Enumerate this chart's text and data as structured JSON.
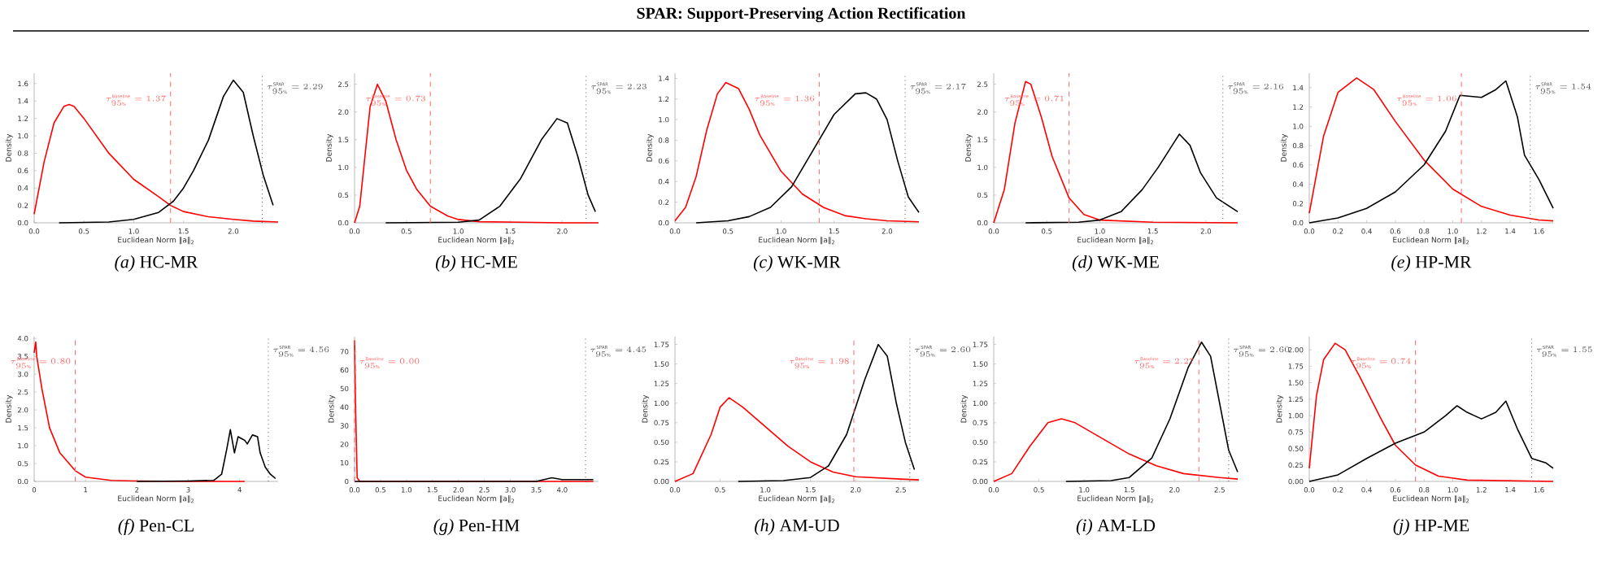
{
  "chart_data": [
    {
      "type": "other",
      "title": "SPAR: Support-Preserving Action Rectification"
    },
    {
      "type": "line",
      "title": "*(a)* HC-MR",
      "xlabel": "Euclidean Norm ‖a‖$_{2}$",
      "ylabel": "Density",
      "xlim": [
        0,
        2.45
      ],
      "ylim": [
        0,
        1.72
      ],
      "xticks": [
        {
          "value": 0,
          "label": "0.0"
        },
        0.5,
        {
          "value": 1,
          "label": "1.0"
        },
        1.5,
        {
          "value": 2,
          "label": "2.0"
        }
      ],
      "yticks": [
        {
          "value": 0,
          "label": "0.0"
        },
        0.2,
        0.4,
        0.6,
        0.8,
        {
          "value": 1,
          "label": "1.0"
        },
        1.2,
        1.4,
        1.6
      ],
      "series": [
        {
          "color": "#ff0000",
          "x": [
            0,
            0.1,
            0.2,
            0.3,
            0.35,
            0.4,
            0.5,
            0.75,
            1.0,
            1.25,
            1.37,
            1.5,
            1.75,
            2.0,
            2.2,
            2.45
          ],
          "values": [
            0.1,
            0.7,
            1.15,
            1.34,
            1.36,
            1.34,
            1.2,
            0.8,
            0.5,
            0.3,
            0.2,
            0.13,
            0.07,
            0.04,
            0.02,
            0.01
          ]
        },
        {
          "color": "#000000",
          "x": [
            0.25,
            0.75,
            1.0,
            1.25,
            1.4,
            1.5,
            1.6,
            1.75,
            1.9,
            2.0,
            2.1,
            2.2,
            2.3,
            2.4
          ],
          "values": [
            0,
            0.01,
            0.04,
            0.12,
            0.25,
            0.4,
            0.6,
            0.95,
            1.45,
            1.64,
            1.5,
            1.0,
            0.55,
            0.2
          ]
        }
      ],
      "ref_lines": [
        {
          "axis": "x",
          "value": 1.37,
          "label": "\\tau^{\\mathrm{Baseline}}_{95\\%} = 1.37",
          "color": "#ff6666",
          "line_style": "dashed"
        },
        {
          "axis": "x",
          "value": 2.29,
          "label": "\\tau^{\\mathrm{SPAR}}_{95\\%} = 2.29",
          "color": "#555555",
          "line_style": "dotted"
        }
      ]
    },
    {
      "type": "line",
      "title": "*(b)* HC-ME",
      "xlabel": "Euclidean Norm ‖a‖$_{2}$",
      "ylabel": "Density",
      "xlim": [
        0,
        2.35
      ],
      "ylim": [
        0,
        2.7
      ],
      "xticks": [
        {
          "value": 0,
          "label": "0.0"
        },
        0.5,
        {
          "value": 1,
          "label": "1.0"
        },
        1.5,
        {
          "value": 2,
          "label": "2.0"
        }
      ],
      "yticks": [
        {
          "value": 0,
          "label": "0.0"
        },
        0.5,
        {
          "value": 1,
          "label": "1.0"
        },
        1.5,
        {
          "value": 2,
          "label": "2.0"
        },
        2.5
      ],
      "series": [
        {
          "color": "#ff0000",
          "x": [
            0,
            0.05,
            0.1,
            0.15,
            0.22,
            0.3,
            0.4,
            0.5,
            0.6,
            0.73,
            0.9,
            1.0,
            1.2,
            1.6,
            2.0,
            2.35
          ],
          "values": [
            0,
            0.3,
            1.2,
            2.1,
            2.5,
            2.2,
            1.5,
            0.95,
            0.6,
            0.3,
            0.12,
            0.06,
            0.02,
            0.01,
            0,
            0
          ]
        },
        {
          "color": "#000000",
          "x": [
            0.3,
            1.0,
            1.2,
            1.4,
            1.6,
            1.8,
            1.95,
            2.05,
            2.15,
            2.25,
            2.32
          ],
          "values": [
            0,
            0.01,
            0.05,
            0.3,
            0.8,
            1.5,
            1.88,
            1.8,
            1.2,
            0.5,
            0.2
          ]
        }
      ],
      "ref_lines": [
        {
          "axis": "x",
          "value": 0.73,
          "label": "\\tau^{\\mathrm{Baseline}}_{95\\%} = 0.73",
          "color": "#ff6666",
          "line_style": "dashed"
        },
        {
          "axis": "x",
          "value": 2.23,
          "label": "\\tau^{\\mathrm{SPAR}}_{95\\%} = 2.23",
          "color": "#555555",
          "line_style": "dotted"
        }
      ]
    },
    {
      "type": "line",
      "title": "*(c)* WK-MR",
      "xlabel": "Euclidean Norm ‖a‖$_{2}$",
      "ylabel": "Density",
      "xlim": [
        0,
        2.3
      ],
      "ylim": [
        0,
        1.45
      ],
      "xticks": [
        {
          "value": 0,
          "label": "0.0"
        },
        0.5,
        {
          "value": 1,
          "label": "1.0"
        },
        1.5,
        {
          "value": 2,
          "label": "2.0"
        }
      ],
      "yticks": [
        {
          "value": 0,
          "label": "0.0"
        },
        0.2,
        0.4,
        0.6,
        0.8,
        {
          "value": 1,
          "label": "1.0"
        },
        1.2,
        1.4
      ],
      "series": [
        {
          "color": "#ff0000",
          "x": [
            0,
            0.1,
            0.2,
            0.3,
            0.4,
            0.48,
            0.6,
            0.7,
            0.8,
            1.0,
            1.2,
            1.4,
            1.6,
            1.8,
            2.0,
            2.3
          ],
          "values": [
            0.02,
            0.15,
            0.45,
            0.9,
            1.25,
            1.36,
            1.3,
            1.1,
            0.85,
            0.5,
            0.28,
            0.15,
            0.07,
            0.04,
            0.02,
            0.01
          ]
        },
        {
          "color": "#000000",
          "x": [
            0.2,
            0.5,
            0.7,
            0.9,
            1.1,
            1.3,
            1.5,
            1.7,
            1.8,
            1.9,
            2.0,
            2.1,
            2.2,
            2.3
          ],
          "values": [
            0,
            0.02,
            0.06,
            0.15,
            0.35,
            0.7,
            1.05,
            1.25,
            1.26,
            1.2,
            1.0,
            0.6,
            0.25,
            0.1
          ]
        }
      ],
      "ref_lines": [
        {
          "axis": "x",
          "value": 1.36,
          "label": "\\tau^{\\mathrm{Baseline}}_{95\\%} = 1.36",
          "color": "#ff6666",
          "line_style": "dashed"
        },
        {
          "axis": "x",
          "value": 2.17,
          "label": "\\tau^{\\mathrm{SPAR}}_{95\\%} = 2.17",
          "color": "#555555",
          "line_style": "dotted"
        }
      ]
    },
    {
      "type": "line",
      "title": "*(d)* WK-ME",
      "xlabel": "Euclidean Norm ‖a‖$_{2}$",
      "ylabel": "Density",
      "xlim": [
        0,
        2.3
      ],
      "ylim": [
        0,
        2.7
      ],
      "xticks": [
        {
          "value": 0,
          "label": "0.0"
        },
        0.5,
        {
          "value": 1,
          "label": "1.0"
        },
        1.5,
        {
          "value": 2,
          "label": "2.0"
        }
      ],
      "yticks": [
        {
          "value": 0,
          "label": "0.0"
        },
        0.5,
        {
          "value": 1,
          "label": "1.0"
        },
        1.5,
        {
          "value": 2,
          "label": "2.0"
        },
        2.5
      ],
      "series": [
        {
          "color": "#ff0000",
          "x": [
            0,
            0.1,
            0.2,
            0.3,
            0.35,
            0.45,
            0.55,
            0.71,
            0.85,
            1.0,
            1.5,
            2.3
          ],
          "values": [
            0,
            0.6,
            1.8,
            2.55,
            2.5,
            1.9,
            1.2,
            0.45,
            0.15,
            0.05,
            0.01,
            0
          ]
        },
        {
          "color": "#000000",
          "x": [
            0.3,
            0.8,
            1.0,
            1.2,
            1.4,
            1.55,
            1.7,
            1.75,
            1.85,
            1.95,
            2.1,
            2.3
          ],
          "values": [
            0,
            0.01,
            0.05,
            0.2,
            0.6,
            1.0,
            1.45,
            1.6,
            1.4,
            0.9,
            0.45,
            0.2
          ]
        }
      ],
      "ref_lines": [
        {
          "axis": "x",
          "value": 0.71,
          "label": "\\tau^{\\mathrm{Baseline}}_{95\\%} = 0.71",
          "color": "#ff6666",
          "line_style": "dashed"
        },
        {
          "axis": "x",
          "value": 2.16,
          "label": "\\tau^{\\mathrm{SPAR}}_{95\\%} = 2.16",
          "color": "#555555",
          "line_style": "dotted"
        }
      ]
    },
    {
      "type": "line",
      "title": "*(e)* HP-MR",
      "xlabel": "Euclidean Norm ‖a‖$_{2}$",
      "ylabel": "Density",
      "xlim": [
        0,
        1.7
      ],
      "ylim": [
        0,
        1.55
      ],
      "xticks": [
        {
          "value": 0,
          "label": "0.0"
        },
        0.2,
        0.4,
        0.6,
        0.8,
        {
          "value": 1,
          "label": "1.0"
        },
        1.2,
        1.4,
        1.6
      ],
      "yticks": [
        {
          "value": 0,
          "label": "0.0"
        },
        0.2,
        0.4,
        0.6,
        0.8,
        {
          "value": 1,
          "label": "1.0"
        },
        1.2,
        1.4
      ],
      "series": [
        {
          "color": "#ff0000",
          "x": [
            0,
            0.1,
            0.2,
            0.33,
            0.45,
            0.6,
            0.8,
            1.0,
            1.2,
            1.4,
            1.6,
            1.7
          ],
          "values": [
            0.1,
            0.9,
            1.35,
            1.5,
            1.38,
            1.05,
            0.65,
            0.35,
            0.17,
            0.08,
            0.03,
            0.02
          ]
        },
        {
          "color": "#000000",
          "x": [
            0,
            0.2,
            0.4,
            0.6,
            0.8,
            0.95,
            1.05,
            1.2,
            1.3,
            1.37,
            1.45,
            1.5,
            1.6,
            1.7
          ],
          "values": [
            0,
            0.05,
            0.15,
            0.32,
            0.6,
            0.95,
            1.32,
            1.3,
            1.38,
            1.47,
            1.1,
            0.7,
            0.45,
            0.15
          ]
        }
      ],
      "ref_lines": [
        {
          "axis": "x",
          "value": 1.06,
          "label": "\\tau^{\\mathrm{Baseline}}_{95\\%} = 1.06",
          "color": "#ff6666",
          "line_style": "dashed"
        },
        {
          "axis": "x",
          "value": 1.54,
          "label": "\\tau^{\\mathrm{SPAR}}_{95\\%} = 1.54",
          "color": "#555555",
          "line_style": "dotted"
        }
      ]
    },
    {
      "type": "line",
      "title": "*(f)* Pen-CL",
      "xlabel": "Euclidean Norm ‖a‖$_{2}$",
      "ylabel": "Density",
      "xlim": [
        0,
        4.75
      ],
      "ylim": [
        0,
        4.05
      ],
      "xticks": [
        0,
        1,
        2,
        3,
        4
      ],
      "yticks": [
        {
          "value": 0,
          "label": "0.0"
        },
        0.5,
        {
          "value": 1,
          "label": "1.0"
        },
        1.5,
        {
          "value": 2,
          "label": "2.0"
        },
        2.5,
        {
          "value": 3,
          "label": "3.0"
        },
        3.5,
        {
          "value": 4,
          "label": "4.0"
        }
      ],
      "series": [
        {
          "color": "#ff0000",
          "x": [
            0,
            0.03,
            0.05,
            0.15,
            0.3,
            0.5,
            0.8,
            1.0,
            1.5,
            2.0,
            3.0,
            4.1
          ],
          "values": [
            3.6,
            3.9,
            3.5,
            2.6,
            1.5,
            0.8,
            0.3,
            0.12,
            0.03,
            0.01,
            0,
            0
          ]
        },
        {
          "color": "#000000",
          "x": [
            2.0,
            3.0,
            3.5,
            3.65,
            3.75,
            3.82,
            3.9,
            3.97,
            4.1,
            4.15,
            4.25,
            4.35,
            4.4,
            4.5,
            4.6,
            4.7
          ],
          "values": [
            0,
            0.01,
            0.03,
            0.2,
            0.9,
            1.45,
            0.8,
            1.25,
            1.15,
            1.05,
            1.3,
            1.25,
            0.8,
            0.4,
            0.2,
            0.08
          ]
        }
      ],
      "ref_lines": [
        {
          "axis": "x",
          "value": 0.8,
          "label": "\\tau^{\\mathrm{Baseline}}_{95\\%} = 0.80",
          "color": "#ff6666",
          "line_style": "dashed"
        },
        {
          "axis": "x",
          "value": 4.56,
          "label": "\\tau^{\\mathrm{SPAR}}_{95\\%} = 4.56",
          "color": "#555555",
          "line_style": "dotted"
        }
      ]
    },
    {
      "type": "line",
      "title": "*(g)* Pen-HM",
      "xlabel": "Euclidean Norm ‖a‖$_{2}$",
      "ylabel": "Density",
      "xlim": [
        0,
        4.7
      ],
      "ylim": [
        0,
        78
      ],
      "xticks": [
        {
          "value": 0,
          "label": "0.0"
        },
        0.5,
        {
          "value": 1,
          "label": "1.0"
        },
        1.5,
        {
          "value": 2,
          "label": "2.0"
        },
        2.5,
        {
          "value": 3,
          "label": "3.0"
        },
        3.5,
        {
          "value": 4,
          "label": "4.0"
        }
      ],
      "yticks": [
        0,
        10,
        20,
        30,
        40,
        50,
        60,
        70
      ],
      "series": [
        {
          "color": "#ff0000",
          "x": [
            0,
            0.02,
            0.05,
            0.1,
            4.6
          ],
          "values": [
            76,
            40,
            2,
            0,
            0
          ]
        },
        {
          "color": "#000000",
          "x": [
            0,
            3.5,
            3.8,
            4.0,
            4.3,
            4.6
          ],
          "values": [
            0,
            0,
            2,
            1,
            1,
            1
          ]
        }
      ],
      "ref_lines": [
        {
          "axis": "x",
          "value": 0.0,
          "label": "\\tau^{\\mathrm{Baseline}}_{95\\%} = 0.00",
          "color": "#ff6666",
          "line_style": "dashed"
        },
        {
          "axis": "x",
          "value": 4.45,
          "label": "\\tau^{\\mathrm{SPAR}}_{95\\%} = 4.45",
          "color": "#555555",
          "line_style": "dotted"
        }
      ]
    },
    {
      "type": "line",
      "title": "*(h)* AM-UD",
      "xlabel": "Euclidean Norm ‖a‖$_{2}$",
      "ylabel": "Density",
      "xlim": [
        0,
        2.7
      ],
      "ylim": [
        0,
        1.85
      ],
      "xticks": [
        {
          "value": 0,
          "label": "0.0"
        },
        0.5,
        {
          "value": 1,
          "label": "1.0"
        },
        1.5,
        {
          "value": 2,
          "label": "2.0"
        },
        2.5
      ],
      "yticks": [
        {
          "value": 0,
          "label": "0.00"
        },
        {
          "value": 0.25,
          "label": "0.25"
        },
        {
          "value": 0.5,
          "label": "0.50"
        },
        {
          "value": 0.75,
          "label": "0.75"
        },
        {
          "value": 1,
          "label": "1.00"
        },
        {
          "value": 1.25,
          "label": "1.25"
        },
        {
          "value": 1.5,
          "label": "1.50"
        },
        {
          "value": 1.75,
          "label": "1.75"
        }
      ],
      "series": [
        {
          "color": "#ff0000",
          "x": [
            0,
            0.2,
            0.4,
            0.5,
            0.6,
            0.75,
            1.0,
            1.25,
            1.5,
            1.75,
            2.0,
            2.5,
            2.7
          ],
          "values": [
            0,
            0.1,
            0.6,
            0.95,
            1.07,
            0.95,
            0.7,
            0.45,
            0.25,
            0.12,
            0.06,
            0.03,
            0.02
          ]
        },
        {
          "color": "#000000",
          "x": [
            0.7,
            1.2,
            1.5,
            1.7,
            1.9,
            2.1,
            2.25,
            2.35,
            2.45,
            2.55,
            2.65
          ],
          "values": [
            0,
            0.01,
            0.05,
            0.2,
            0.6,
            1.3,
            1.75,
            1.6,
            1.0,
            0.5,
            0.15
          ]
        }
      ],
      "ref_lines": [
        {
          "axis": "x",
          "value": 1.98,
          "label": "\\tau^{\\mathrm{Baseline}}_{95\\%} = 1.98",
          "color": "#ff6666",
          "line_style": "dashed"
        },
        {
          "axis": "x",
          "value": 2.6,
          "label": "\\tau^{\\mathrm{SPAR}}_{95\\%} = 2.60",
          "color": "#555555",
          "line_style": "dotted"
        }
      ]
    },
    {
      "type": "line",
      "title": "*(i)* AM-LD",
      "xlabel": "Euclidean Norm ‖a‖$_{2}$",
      "ylabel": "Density",
      "xlim": [
        0,
        2.7
      ],
      "ylim": [
        0,
        1.85
      ],
      "xticks": [
        {
          "value": 0,
          "label": "0.0"
        },
        0.5,
        {
          "value": 1,
          "label": "1.0"
        },
        1.5,
        {
          "value": 2,
          "label": "2.0"
        },
        2.5
      ],
      "yticks": [
        {
          "value": 0,
          "label": "0.00"
        },
        {
          "value": 0.25,
          "label": "0.25"
        },
        {
          "value": 0.5,
          "label": "0.50"
        },
        {
          "value": 0.75,
          "label": "0.75"
        },
        {
          "value": 1,
          "label": "1.00"
        },
        {
          "value": 1.25,
          "label": "1.25"
        },
        {
          "value": 1.5,
          "label": "1.50"
        },
        {
          "value": 1.75,
          "label": "1.75"
        }
      ],
      "series": [
        {
          "color": "#ff0000",
          "x": [
            0,
            0.2,
            0.4,
            0.6,
            0.75,
            0.9,
            1.2,
            1.5,
            1.8,
            2.1,
            2.5,
            2.7
          ],
          "values": [
            0,
            0.1,
            0.45,
            0.75,
            0.8,
            0.75,
            0.55,
            0.35,
            0.2,
            0.1,
            0.05,
            0.03
          ]
        },
        {
          "color": "#000000",
          "x": [
            0.8,
            1.3,
            1.5,
            1.75,
            1.95,
            2.15,
            2.3,
            2.4,
            2.5,
            2.6,
            2.7
          ],
          "values": [
            0,
            0.01,
            0.05,
            0.3,
            0.8,
            1.45,
            1.78,
            1.6,
            1.0,
            0.4,
            0.12
          ]
        }
      ],
      "ref_lines": [
        {
          "axis": "x",
          "value": 2.27,
          "label": "\\tau^{\\mathrm{Baseline}}_{95\\%} = 2.27",
          "color": "#ff6666",
          "line_style": "dashed"
        },
        {
          "axis": "x",
          "value": 2.6,
          "label": "\\tau^{\\mathrm{SPAR}}_{95\\%} = 2.60",
          "color": "#555555",
          "line_style": "dotted"
        }
      ]
    },
    {
      "type": "line",
      "title": "*(j)* HP-ME",
      "xlabel": "Euclidean Norm ‖a‖$_{2}$",
      "ylabel": "Density",
      "xlim": [
        0,
        1.7
      ],
      "ylim": [
        0,
        2.2
      ],
      "xticks": [
        {
          "value": 0,
          "label": "0.0"
        },
        0.2,
        0.4,
        0.6,
        0.8,
        {
          "value": 1,
          "label": "1.0"
        },
        1.2,
        1.4,
        1.6
      ],
      "yticks": [
        {
          "value": 0,
          "label": "0.00"
        },
        {
          "value": 0.25,
          "label": "0.25"
        },
        {
          "value": 0.5,
          "label": "0.50"
        },
        {
          "value": 0.75,
          "label": "0.75"
        },
        {
          "value": 1,
          "label": "1.00"
        },
        {
          "value": 1.25,
          "label": "1.25"
        },
        {
          "value": 1.5,
          "label": "1.50"
        },
        {
          "value": 1.75,
          "label": "1.75"
        },
        {
          "value": 2,
          "label": "2.00"
        }
      ],
      "series": [
        {
          "color": "#ff0000",
          "x": [
            0,
            0.05,
            0.1,
            0.18,
            0.25,
            0.35,
            0.5,
            0.6,
            0.74,
            0.9,
            1.1,
            1.7
          ],
          "values": [
            0.2,
            1.3,
            1.85,
            2.1,
            2.0,
            1.6,
            0.95,
            0.55,
            0.25,
            0.08,
            0.02,
            0
          ]
        },
        {
          "color": "#000000",
          "x": [
            0,
            0.2,
            0.4,
            0.6,
            0.8,
            0.95,
            1.03,
            1.1,
            1.2,
            1.3,
            1.37,
            1.45,
            1.55,
            1.65,
            1.7
          ],
          "values": [
            0,
            0.1,
            0.35,
            0.58,
            0.75,
            1.0,
            1.15,
            1.05,
            0.95,
            1.05,
            1.22,
            0.8,
            0.35,
            0.28,
            0.2
          ]
        }
      ],
      "ref_lines": [
        {
          "axis": "x",
          "value": 0.74,
          "label": "\\tau^{\\mathrm{Baseline}}_{95\\%} = 0.74",
          "color": "#ff6666",
          "line_style": "dashed"
        },
        {
          "axis": "x",
          "value": 1.55,
          "label": "\\tau^{\\mathrm{SPAR}}_{95\\%} = 1.55",
          "color": "#555555",
          "line_style": "dotted"
        }
      ]
    }
  ]
}
